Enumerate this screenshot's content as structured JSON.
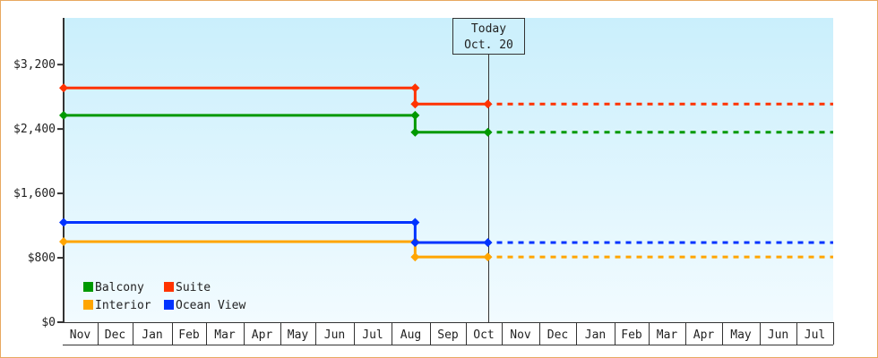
{
  "chart_data": {
    "type": "line",
    "title": "",
    "xlabel": "",
    "ylabel": "",
    "ylim": [
      0,
      3780
    ],
    "y_ticks": [
      "$0",
      "$800",
      "$1,600",
      "$2,400",
      "$3,200"
    ],
    "y_tick_values": [
      0,
      800,
      1600,
      2400,
      3200
    ],
    "x_ticks": [
      "Nov",
      "Dec",
      "Jan",
      "Feb",
      "Mar",
      "Apr",
      "May",
      "Jun",
      "Jul",
      "Aug",
      "Sep",
      "Oct",
      "Nov",
      "Dec",
      "Jan",
      "Feb",
      "Mar",
      "Apr",
      "May",
      "Jun",
      "Jul"
    ],
    "grid": false,
    "legend_placement": "bottom-left",
    "today_marker": {
      "line1": "Today",
      "line2": "Oct. 20",
      "date": "Oct 20"
    },
    "series": [
      {
        "name": "Balcony",
        "color": "#009900",
        "points": [
          {
            "x": "Nov",
            "y": 2570
          },
          {
            "x": "Aug 20",
            "y": 2570
          },
          {
            "x": "Aug 20",
            "y": 2360
          },
          {
            "x": "Oct 20",
            "y": 2360
          }
        ],
        "projected": {
          "from": "Oct 20",
          "to": "Jul end",
          "y": 2360
        }
      },
      {
        "name": "Suite",
        "color": "#ff3300",
        "points": [
          {
            "x": "Nov",
            "y": 2910
          },
          {
            "x": "Aug 20",
            "y": 2910
          },
          {
            "x": "Aug 20",
            "y": 2710
          },
          {
            "x": "Oct 20",
            "y": 2710
          }
        ],
        "projected": {
          "from": "Oct 20",
          "to": "Jul end",
          "y": 2710
        }
      },
      {
        "name": "Interior",
        "color": "#ffa500",
        "points": [
          {
            "x": "Nov",
            "y": 1000
          },
          {
            "x": "Aug 20",
            "y": 1000
          },
          {
            "x": "Aug 20",
            "y": 810
          },
          {
            "x": "Oct 20",
            "y": 810
          }
        ],
        "projected": {
          "from": "Oct 20",
          "to": "Jul end",
          "y": 810
        }
      },
      {
        "name": "Ocean View",
        "color": "#0033ff",
        "points": [
          {
            "x": "Nov",
            "y": 1240
          },
          {
            "x": "Aug 20",
            "y": 1240
          },
          {
            "x": "Aug 20",
            "y": 990
          },
          {
            "x": "Oct 20",
            "y": 990
          }
        ],
        "projected": {
          "from": "Oct 20",
          "to": "Jul end",
          "y": 990
        }
      }
    ]
  }
}
